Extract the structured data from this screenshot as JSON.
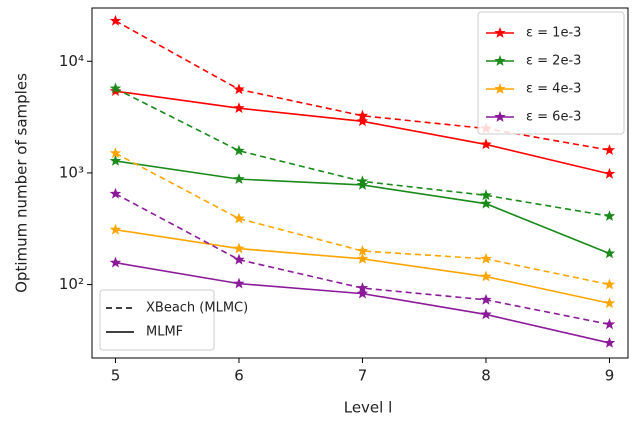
{
  "chart_data": {
    "type": "line",
    "x_label": "Level l",
    "y_label": "Optimum number of samples",
    "x": [
      5,
      6,
      7,
      8,
      9
    ],
    "xlim": [
      4.81,
      9.15
    ],
    "xticks": [
      5,
      6,
      7,
      8,
      9
    ],
    "ylim": [
      22,
      30000
    ],
    "yticks": [
      {
        "value": 100,
        "label": "10²"
      },
      {
        "value": 1000,
        "label": "10³"
      },
      {
        "value": 10000,
        "label": "10⁴"
      }
    ],
    "y_scale": "log",
    "legend_position": "upper right",
    "series": [
      {
        "name": "ε = 1e-3",
        "color": "#ff0000",
        "values": [
          5400,
          3800,
          2900,
          1800,
          980
        ],
        "xbeach_values": [
          23000,
          5600,
          3250,
          2500,
          1600
        ]
      },
      {
        "name": "ε = 2e-3",
        "color": "#1a8a1a",
        "values": [
          1280,
          880,
          780,
          530,
          190
        ],
        "xbeach_values": [
          5700,
          1580,
          840,
          630,
          410
        ]
      },
      {
        "name": "ε = 4e-3",
        "color": "#ffa500",
        "values": [
          310,
          210,
          170,
          118,
          68
        ],
        "xbeach_values": [
          1500,
          390,
          200,
          170,
          100
        ]
      },
      {
        "name": "ε = 6e-3",
        "color": "#8b1a9a",
        "values": [
          157,
          102,
          83,
          54,
          30
        ],
        "xbeach_values": [
          650,
          167,
          93,
          73,
          44
        ]
      }
    ],
    "style_legend": [
      {
        "label": "XBeach (MLMC)",
        "dashed": true
      },
      {
        "label": "MLMF",
        "dashed": false
      }
    ]
  }
}
